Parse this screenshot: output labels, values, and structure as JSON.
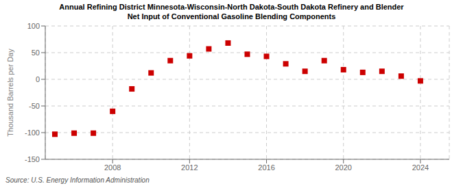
{
  "chart_data": {
    "type": "scatter",
    "title": "Annual Refining District Minnesota-Wisconsin-North Dakota-South Dakota Refinery and Blender\nNet Input of Conventional Gasoline Blending Components",
    "ylabel": "Thousand Barrels per Day",
    "annotations": [
      "Source: U.S. Energy Information Administration"
    ],
    "x": [
      2005,
      2006,
      2007,
      2008,
      2009,
      2010,
      2011,
      2012,
      2013,
      2014,
      2015,
      2016,
      2017,
      2018,
      2019,
      2020,
      2021,
      2022,
      2023,
      2024
    ],
    "values": [
      -103,
      -101,
      -101,
      -60,
      -18,
      12,
      35,
      44,
      57,
      68,
      47,
      43,
      29,
      15,
      35,
      18,
      13,
      15,
      6,
      -3
    ],
    "xlim": [
      2004.5,
      2025.5
    ],
    "ylim": [
      -150,
      100
    ],
    "xticks": [
      2008,
      2012,
      2016,
      2020,
      2024
    ],
    "yticks": [
      -150,
      -100,
      -50,
      0,
      50,
      100
    ],
    "color": "#cc0000",
    "marker": "square",
    "grid": true
  }
}
